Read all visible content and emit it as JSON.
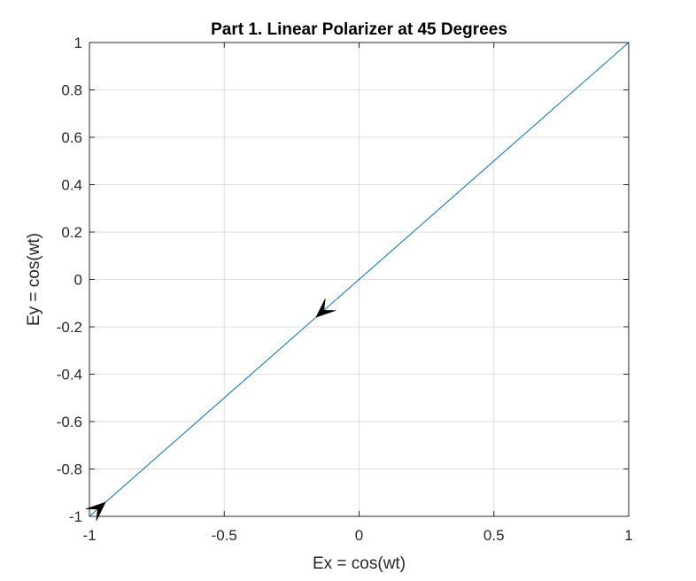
{
  "chart_data": {
    "type": "line",
    "title": "Part 1. Linear Polarizer at 45 Degrees",
    "xlabel": "Ex = cos(wt)",
    "ylabel": "Ey = cos(wt)",
    "xlim": [
      -1,
      1
    ],
    "ylim": [
      -1,
      1
    ],
    "x_ticks": [
      -1,
      -0.5,
      0,
      0.5,
      1
    ],
    "x_tick_labels": [
      "-1",
      "-0.5",
      "0",
      "0.5",
      "1"
    ],
    "y_ticks": [
      -1,
      -0.8,
      -0.6,
      -0.4,
      -0.2,
      0,
      0.2,
      0.4,
      0.6,
      0.8,
      1
    ],
    "y_tick_labels": [
      "-1",
      "-0.8",
      "-0.6",
      "-0.4",
      "-0.2",
      "0",
      "0.2",
      "0.4",
      "0.6",
      "0.8",
      "1"
    ],
    "grid": true,
    "series": [
      {
        "x": [
          -1,
          1
        ],
        "y": [
          -1,
          1
        ],
        "color": "#0072BD"
      }
    ],
    "arrows": [
      {
        "x": -0.16,
        "y": -0.16,
        "direction": "toward-negative"
      },
      {
        "x": -0.94,
        "y": -0.94,
        "direction": "toward-positive"
      }
    ],
    "arrow_color": "#000000"
  }
}
